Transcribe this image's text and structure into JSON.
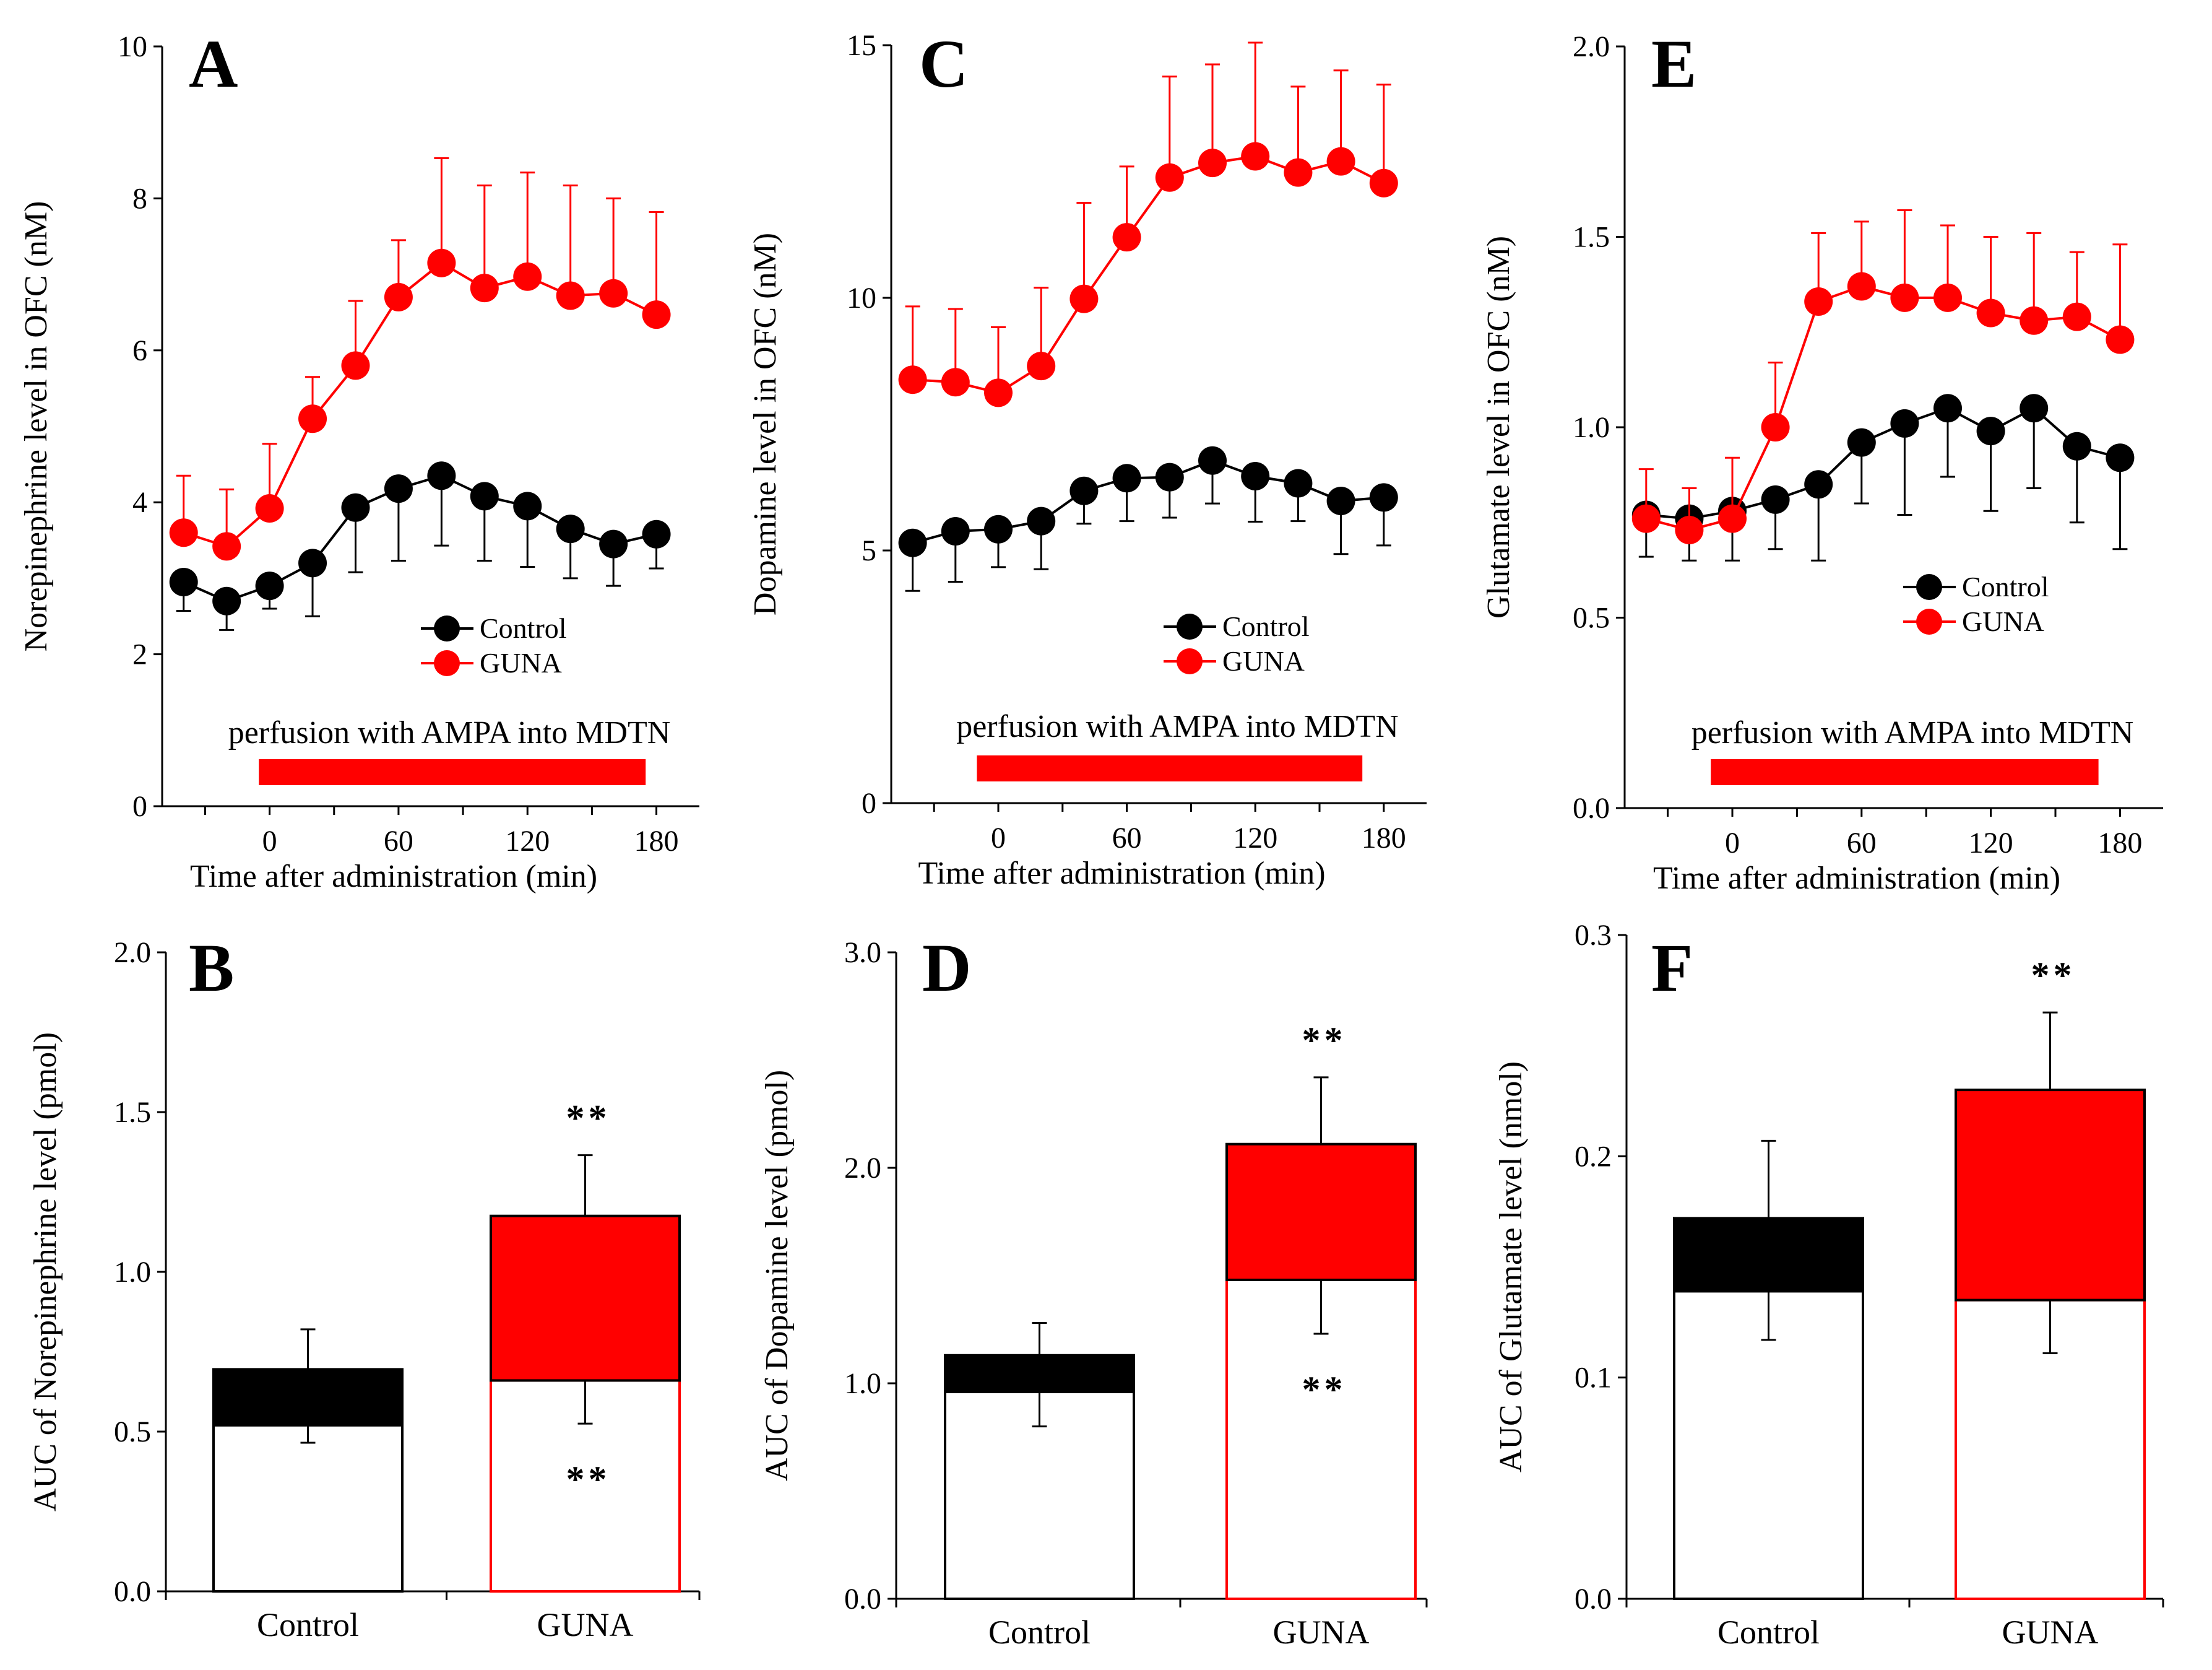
{
  "chart_data": [
    {
      "id": "A",
      "type": "line",
      "panel_label": "A",
      "ylabel": "Norepinephrine level in OFC (nM)",
      "xlabel": "Time after administration (min)",
      "ylim": [
        0,
        10
      ],
      "yticks": [
        0,
        2,
        4,
        6,
        8,
        10
      ],
      "xlim": [
        -50,
        200
      ],
      "xticks": [
        0,
        60,
        120,
        180
      ],
      "x": [
        -40,
        -20,
        0,
        20,
        40,
        60,
        80,
        100,
        120,
        140,
        160,
        180
      ],
      "annotation": "perfusion with AMPA into MDTN",
      "bar_span": [
        -5,
        175
      ],
      "series": [
        {
          "name": "Control",
          "color": "#000000",
          "values": [
            2.95,
            2.7,
            2.9,
            3.2,
            3.93,
            4.18,
            4.35,
            4.08,
            3.95,
            3.65,
            3.45,
            3.58
          ],
          "errors": [
            0.38,
            0.38,
            0.3,
            0.7,
            0.85,
            0.95,
            0.92,
            0.85,
            0.8,
            0.65,
            0.55,
            0.45
          ]
        },
        {
          "name": "GUNA",
          "color": "#ff0000",
          "values": [
            3.6,
            3.42,
            3.92,
            5.1,
            5.8,
            6.7,
            7.15,
            6.82,
            6.97,
            6.72,
            6.75,
            6.47
          ],
          "errors": [
            0.75,
            0.75,
            0.85,
            0.55,
            0.85,
            0.75,
            1.38,
            1.35,
            1.37,
            1.45,
            1.25,
            1.35
          ]
        }
      ],
      "legend": [
        "Control",
        "GUNA"
      ]
    },
    {
      "id": "C",
      "type": "line",
      "panel_label": "C",
      "ylabel": "Dopamine level in OFC (nM)",
      "xlabel": "Time after administration (min)",
      "ylim": [
        0,
        15
      ],
      "yticks": [
        0,
        5,
        10,
        15
      ],
      "xlim": [
        -50,
        200
      ],
      "xticks": [
        0,
        60,
        120,
        180
      ],
      "x": [
        -40,
        -20,
        0,
        20,
        40,
        60,
        80,
        100,
        120,
        140,
        160,
        180
      ],
      "annotation": "perfusion with AMPA into MDTN",
      "bar_span": [
        -10,
        170
      ],
      "series": [
        {
          "name": "Control",
          "color": "#000000",
          "values": [
            5.15,
            5.38,
            5.42,
            5.58,
            6.18,
            6.43,
            6.45,
            6.78,
            6.47,
            6.33,
            5.98,
            6.05
          ],
          "errors": [
            0.95,
            1.0,
            0.75,
            0.95,
            0.65,
            0.85,
            0.8,
            0.85,
            0.9,
            0.75,
            1.05,
            0.95
          ]
        },
        {
          "name": "GUNA",
          "color": "#ff0000",
          "values": [
            8.38,
            8.33,
            8.12,
            8.65,
            9.98,
            11.2,
            12.38,
            12.67,
            12.8,
            12.48,
            12.7,
            12.27
          ],
          "errors": [
            1.45,
            1.45,
            1.3,
            1.55,
            1.9,
            1.4,
            2.0,
            1.95,
            2.25,
            1.7,
            1.8,
            1.95
          ]
        }
      ],
      "legend": [
        "Control",
        "GUNA"
      ]
    },
    {
      "id": "E",
      "type": "line",
      "panel_label": "E",
      "ylabel": "Glutamate level in OFC (nM)",
      "xlabel": "Time after administration (min)",
      "ylim": [
        0,
        2
      ],
      "yticks": [
        0.0,
        0.5,
        1.0,
        1.5,
        2.0
      ],
      "xlim": [
        -50,
        200
      ],
      "xticks": [
        0,
        60,
        120,
        180
      ],
      "x": [
        -40,
        -20,
        0,
        20,
        40,
        60,
        80,
        100,
        120,
        140,
        160,
        180
      ],
      "annotation": "perfusion with AMPA into MDTN",
      "bar_span": [
        -10,
        170
      ],
      "series": [
        {
          "name": "Control",
          "color": "#000000",
          "values": [
            0.77,
            0.76,
            0.78,
            0.81,
            0.85,
            0.96,
            1.01,
            1.05,
            0.99,
            1.05,
            0.95,
            0.92
          ],
          "errors": [
            0.11,
            0.11,
            0.13,
            0.13,
            0.2,
            0.16,
            0.24,
            0.18,
            0.21,
            0.21,
            0.2,
            0.24
          ]
        },
        {
          "name": "GUNA",
          "color": "#ff0000",
          "values": [
            0.76,
            0.73,
            0.76,
            1.0,
            1.33,
            1.37,
            1.34,
            1.34,
            1.3,
            1.28,
            1.29,
            1.23
          ],
          "errors": [
            0.13,
            0.11,
            0.16,
            0.17,
            0.18,
            0.17,
            0.23,
            0.19,
            0.2,
            0.23,
            0.17,
            0.25
          ]
        }
      ],
      "legend": [
        "Control",
        "GUNA"
      ]
    },
    {
      "id": "B",
      "type": "bar",
      "stacked": true,
      "panel_label": "B",
      "ylabel": "AUC of Norepinephrine level (pmol)",
      "ylim": [
        0,
        2.0
      ],
      "yticks": [
        "0.0",
        "0.5",
        "1.0",
        "1.5",
        "2.0"
      ],
      "categories": [
        "Control",
        "GUNA"
      ],
      "base_values": [
        0.52,
        0.66
      ],
      "total_values": [
        0.695,
        1.175
      ],
      "base_lower_errors": [
        0.055,
        0.135
      ],
      "total_upper_errors": [
        0.125,
        0.19
      ],
      "colors": [
        "#000000",
        "#ff0000"
      ],
      "significance": {
        "top": "**",
        "bottom": "**"
      }
    },
    {
      "id": "D",
      "type": "bar",
      "stacked": true,
      "panel_label": "D",
      "ylabel": "AUC of Dopamine level (pmol)",
      "ylim": [
        0,
        3.0
      ],
      "yticks": [
        "0.0",
        "1.0",
        "2.0",
        "3.0"
      ],
      "categories": [
        "Control",
        "GUNA"
      ],
      "base_values": [
        0.96,
        1.48
      ],
      "total_values": [
        1.13,
        2.11
      ],
      "base_lower_errors": [
        0.16,
        0.25
      ],
      "total_upper_errors": [
        0.15,
        0.31
      ],
      "colors": [
        "#000000",
        "#ff0000"
      ],
      "significance": {
        "top": "**",
        "bottom": "**"
      }
    },
    {
      "id": "F",
      "type": "bar",
      "stacked": true,
      "panel_label": "F",
      "ylabel": "AUC of Glutamate level (nmol)",
      "ylim": [
        0,
        0.3
      ],
      "yticks": [
        "0.0",
        "0.1",
        "0.2",
        "0.3"
      ],
      "categories": [
        "Control",
        "GUNA"
      ],
      "base_values": [
        0.139,
        0.135
      ],
      "total_values": [
        0.172,
        0.23
      ],
      "base_lower_errors": [
        0.022,
        0.024
      ],
      "total_upper_errors": [
        0.035,
        0.035
      ],
      "colors": [
        "#000000",
        "#ff0000"
      ],
      "significance": {
        "top": "**",
        "bottom": ""
      }
    }
  ]
}
